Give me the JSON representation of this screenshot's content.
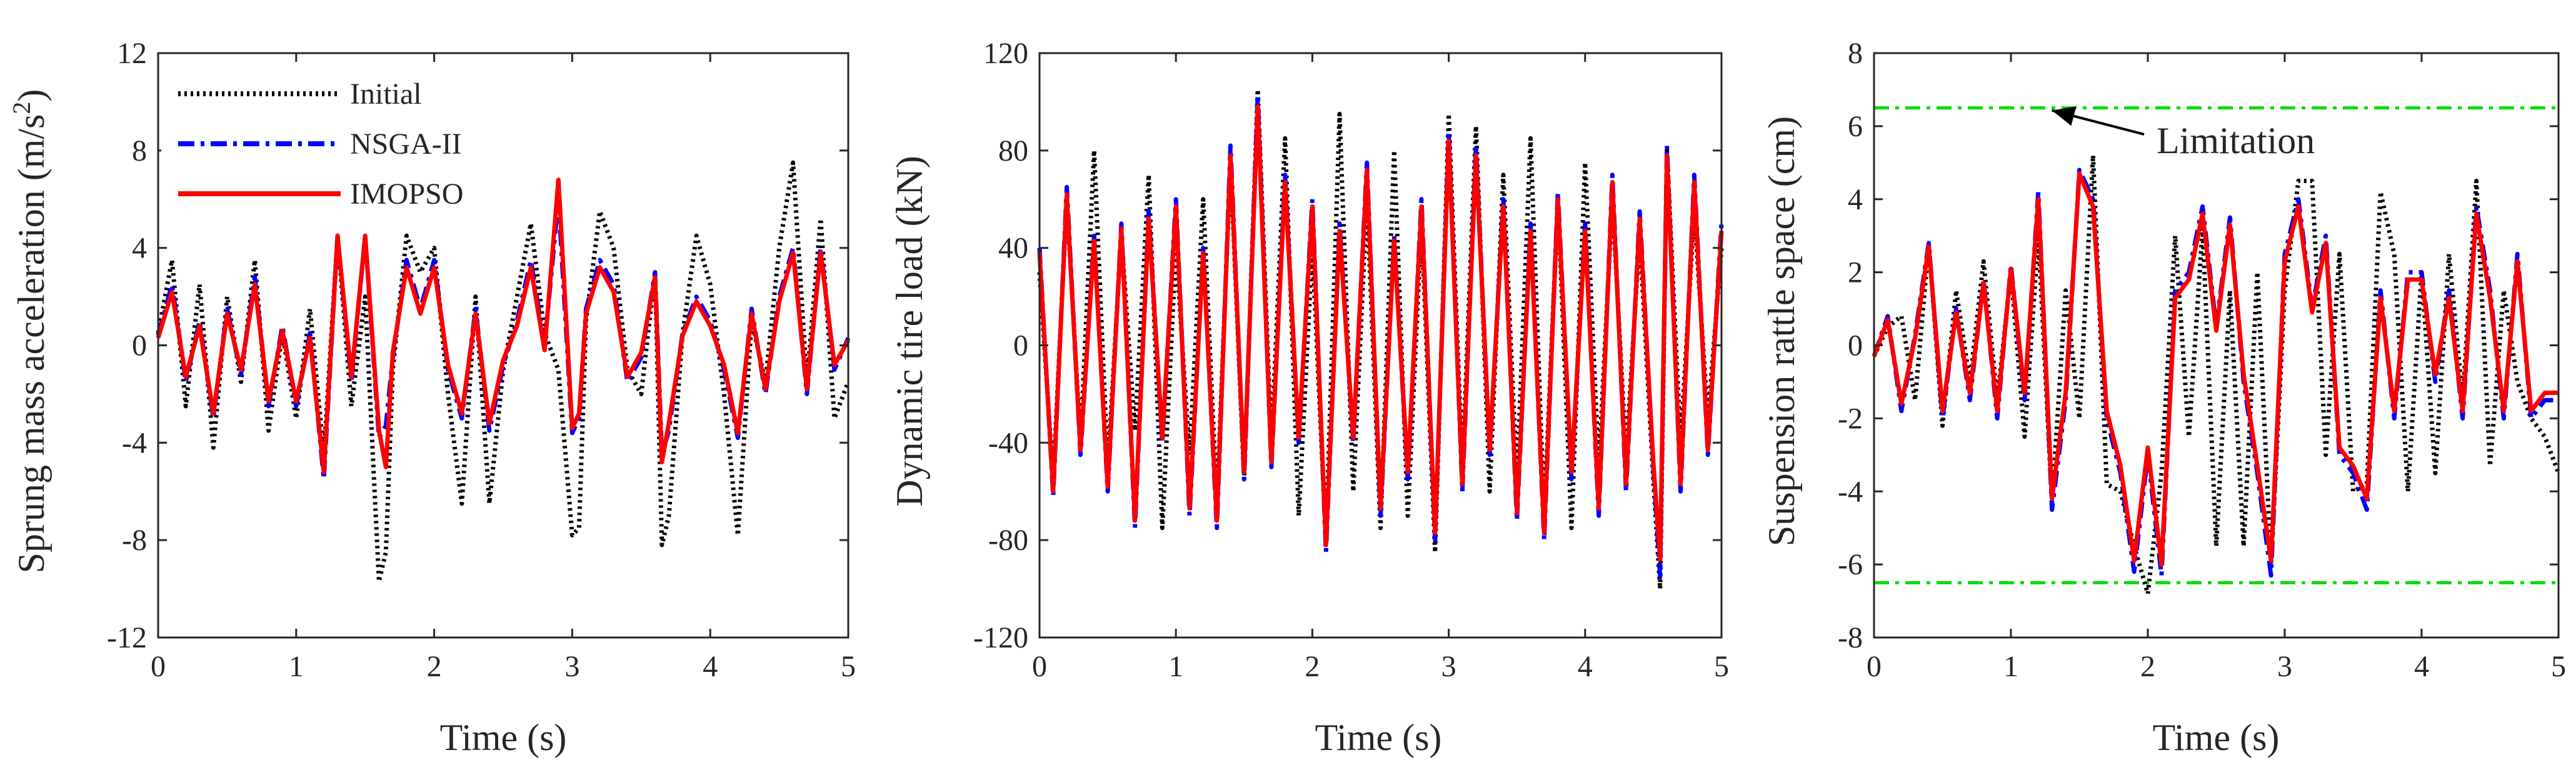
{
  "colors": {
    "initial": "#000000",
    "nsga": "#0000ff",
    "imopso": "#ff0000",
    "limit": "#00dd00",
    "axis": "#262626"
  },
  "chart_data": [
    {
      "type": "line",
      "ylabel": "Sprung mass acceleration (m/s",
      "ylabel_sup": "2",
      "ylabel_tail": ")",
      "xlabel": "Time (s)",
      "xlim": [
        0,
        5
      ],
      "ylim": [
        -12,
        12
      ],
      "xticks": [
        0,
        1,
        2,
        3,
        4,
        5
      ],
      "yticks": [
        -12,
        -8,
        -4,
        0,
        4,
        8,
        12
      ],
      "legend": {
        "placement": "top-left",
        "entries": [
          "Initial",
          "NSGA-II",
          "IMOPSO"
        ]
      },
      "series": [
        {
          "name": "Initial",
          "style": "dotted",
          "x": [
            0,
            0.1,
            0.2,
            0.3,
            0.4,
            0.5,
            0.6,
            0.7,
            0.8,
            0.9,
            1.0,
            1.1,
            1.2,
            1.3,
            1.4,
            1.5,
            1.6,
            1.65,
            1.7,
            1.8,
            1.9,
            2.0,
            2.1,
            2.2,
            2.3,
            2.4,
            2.5,
            2.6,
            2.7,
            2.8,
            2.9,
            3.0,
            3.05,
            3.1,
            3.2,
            3.3,
            3.4,
            3.5,
            3.6,
            3.65,
            3.7,
            3.8,
            3.9,
            4.0,
            4.1,
            4.2,
            4.3,
            4.4,
            4.5,
            4.6,
            4.7,
            4.8,
            4.9,
            5.0
          ],
          "y": [
            0.5,
            3.5,
            -2.5,
            2.5,
            -4.2,
            2.0,
            -1.5,
            3.5,
            -3.5,
            0.5,
            -3.0,
            1.5,
            -4.5,
            4.5,
            -2.5,
            2.0,
            -9.7,
            -8.5,
            -1.0,
            4.5,
            3.0,
            4.0,
            -2.0,
            -6.5,
            2.0,
            -6.5,
            -1.0,
            2.0,
            5.0,
            0.5,
            -1.0,
            -7.8,
            -7.5,
            1.0,
            5.5,
            4.0,
            -1.0,
            -2.0,
            3.0,
            -8.2,
            -7.0,
            0.5,
            4.5,
            2.5,
            -2.0,
            -7.8,
            1.0,
            -1.5,
            4.0,
            7.5,
            -1.5,
            5.2,
            -3.0,
            -1.5
          ]
        },
        {
          "name": "NSGA-II",
          "style": "dashdot",
          "x": [
            0,
            0.1,
            0.2,
            0.3,
            0.4,
            0.5,
            0.6,
            0.7,
            0.8,
            0.9,
            1.0,
            1.1,
            1.2,
            1.3,
            1.4,
            1.5,
            1.6,
            1.65,
            1.7,
            1.8,
            1.9,
            2.0,
            2.1,
            2.2,
            2.3,
            2.4,
            2.5,
            2.6,
            2.7,
            2.8,
            2.9,
            3.0,
            3.05,
            3.1,
            3.2,
            3.3,
            3.4,
            3.5,
            3.6,
            3.65,
            3.7,
            3.8,
            3.9,
            4.0,
            4.1,
            4.2,
            4.3,
            4.4,
            4.5,
            4.6,
            4.7,
            4.8,
            4.9,
            5.0
          ],
          "y": [
            0.4,
            2.5,
            -1.5,
            1.0,
            -3.0,
            1.5,
            -1.2,
            2.8,
            -2.5,
            0.8,
            -2.5,
            0.5,
            -5.5,
            4.5,
            -1.5,
            4.5,
            -3.8,
            -3.3,
            -0.5,
            3.5,
            1.5,
            3.5,
            -1.0,
            -3.0,
            1.5,
            -3.5,
            -0.8,
            1.0,
            3.5,
            0.0,
            6.0,
            -3.6,
            -3.0,
            1.5,
            3.5,
            2.5,
            -1.5,
            -0.5,
            3.0,
            -4.5,
            -3.5,
            0.5,
            2.0,
            1.0,
            -1.0,
            -3.8,
            1.5,
            -2.0,
            2.0,
            4.0,
            -2.0,
            4.0,
            -1.0,
            0.3
          ]
        },
        {
          "name": "IMOPSO",
          "style": "solid",
          "x": [
            0,
            0.1,
            0.2,
            0.3,
            0.4,
            0.5,
            0.6,
            0.7,
            0.8,
            0.9,
            1.0,
            1.1,
            1.2,
            1.3,
            1.4,
            1.5,
            1.6,
            1.65,
            1.7,
            1.8,
            1.9,
            2.0,
            2.1,
            2.2,
            2.3,
            2.4,
            2.5,
            2.6,
            2.7,
            2.8,
            2.9,
            3.0,
            3.05,
            3.1,
            3.2,
            3.3,
            3.4,
            3.5,
            3.6,
            3.65,
            3.7,
            3.8,
            3.9,
            4.0,
            4.1,
            4.2,
            4.3,
            4.4,
            4.5,
            4.6,
            4.7,
            4.8,
            4.9,
            5.0
          ],
          "y": [
            0.3,
            2.2,
            -1.3,
            0.8,
            -2.8,
            1.3,
            -1.0,
            2.5,
            -2.3,
            0.6,
            -2.3,
            0.3,
            -5.2,
            4.5,
            -1.3,
            4.5,
            -3.5,
            -5.0,
            -0.3,
            3.2,
            1.3,
            3.2,
            -0.8,
            -2.8,
            1.3,
            -3.2,
            -0.6,
            0.8,
            3.2,
            -0.2,
            6.8,
            -3.4,
            -2.8,
            1.3,
            3.2,
            2.2,
            -1.3,
            -0.3,
            2.8,
            -4.8,
            -3.2,
            0.4,
            1.8,
            0.8,
            -0.8,
            -3.6,
            1.3,
            -1.8,
            1.8,
            3.8,
            -1.8,
            3.8,
            -0.8,
            0.2
          ]
        }
      ]
    },
    {
      "type": "line",
      "ylabel": "Dynamic tire load (kN)",
      "xlabel": "Time (s)",
      "xlim": [
        0,
        5
      ],
      "ylim": [
        -120,
        120
      ],
      "xticks": [
        0,
        1,
        2,
        3,
        4,
        5
      ],
      "yticks": [
        -120,
        -80,
        -40,
        0,
        40,
        80,
        120
      ],
      "series": [
        {
          "name": "Initial",
          "style": "dotted",
          "x": [
            0,
            0.1,
            0.2,
            0.3,
            0.4,
            0.5,
            0.6,
            0.7,
            0.8,
            0.9,
            1.0,
            1.1,
            1.2,
            1.3,
            1.4,
            1.5,
            1.6,
            1.7,
            1.8,
            1.9,
            2.0,
            2.1,
            2.2,
            2.3,
            2.4,
            2.5,
            2.6,
            2.7,
            2.8,
            2.9,
            3.0,
            3.1,
            3.2,
            3.3,
            3.4,
            3.5,
            3.6,
            3.7,
            3.8,
            3.9,
            4.0,
            4.1,
            4.2,
            4.3,
            4.4,
            4.5,
            4.55,
            4.6,
            4.7,
            4.8,
            4.9,
            5.0
          ],
          "y": [
            30,
            -55,
            60,
            -40,
            80,
            -50,
            45,
            -35,
            70,
            -75,
            40,
            -45,
            60,
            -65,
            75,
            -55,
            105,
            -40,
            85,
            -70,
            40,
            -80,
            95,
            -60,
            60,
            -75,
            80,
            -70,
            50,
            -85,
            95,
            -50,
            90,
            -60,
            70,
            -55,
            85,
            -70,
            60,
            -75,
            75,
            -50,
            60,
            -45,
            45,
            -55,
            -100,
            80,
            -40,
            55,
            -30,
            40
          ]
        },
        {
          "name": "NSGA-II",
          "style": "dashdot",
          "x": [
            0,
            0.1,
            0.2,
            0.3,
            0.4,
            0.5,
            0.6,
            0.7,
            0.8,
            0.9,
            1.0,
            1.1,
            1.2,
            1.3,
            1.4,
            1.5,
            1.6,
            1.7,
            1.8,
            1.9,
            2.0,
            2.1,
            2.2,
            2.3,
            2.4,
            2.5,
            2.6,
            2.7,
            2.8,
            2.9,
            3.0,
            3.1,
            3.2,
            3.3,
            3.4,
            3.5,
            3.6,
            3.7,
            3.8,
            3.9,
            4.0,
            4.1,
            4.2,
            4.3,
            4.4,
            4.5,
            4.55,
            4.6,
            4.7,
            4.8,
            4.9,
            5.0
          ],
          "y": [
            40,
            -62,
            65,
            -45,
            45,
            -60,
            50,
            -75,
            55,
            -40,
            60,
            -70,
            40,
            -75,
            82,
            -55,
            103,
            -50,
            70,
            -40,
            60,
            -85,
            50,
            -40,
            75,
            -70,
            45,
            -55,
            60,
            -80,
            88,
            -60,
            82,
            -45,
            60,
            -72,
            50,
            -80,
            63,
            -55,
            50,
            -70,
            70,
            -60,
            55,
            -50,
            -95,
            82,
            -60,
            70,
            -45,
            50
          ]
        },
        {
          "name": "IMOPSO",
          "style": "solid",
          "x": [
            0,
            0.1,
            0.2,
            0.3,
            0.4,
            0.5,
            0.6,
            0.7,
            0.8,
            0.9,
            1.0,
            1.1,
            1.2,
            1.3,
            1.4,
            1.5,
            1.6,
            1.7,
            1.8,
            1.9,
            2.0,
            2.1,
            2.2,
            2.3,
            2.4,
            2.5,
            2.6,
            2.7,
            2.8,
            2.9,
            3.0,
            3.1,
            3.2,
            3.3,
            3.4,
            3.5,
            3.6,
            3.7,
            3.8,
            3.9,
            4.0,
            4.1,
            4.2,
            4.3,
            4.4,
            4.5,
            4.55,
            4.6,
            4.7,
            4.8,
            4.9,
            5.0
          ],
          "y": [
            38,
            -60,
            62,
            -43,
            43,
            -58,
            48,
            -72,
            52,
            -38,
            57,
            -67,
            38,
            -72,
            78,
            -52,
            98,
            -48,
            67,
            -38,
            57,
            -82,
            47,
            -38,
            72,
            -67,
            43,
            -52,
            57,
            -77,
            84,
            -57,
            78,
            -43,
            57,
            -69,
            47,
            -77,
            60,
            -52,
            47,
            -67,
            67,
            -57,
            52,
            -48,
            -88,
            78,
            -57,
            67,
            -43,
            47
          ]
        }
      ]
    },
    {
      "type": "line",
      "ylabel": "Suspension rattle space (cm)",
      "xlabel": "Time (s)",
      "xlim": [
        0,
        5
      ],
      "ylim": [
        -8,
        8
      ],
      "xticks": [
        0,
        1,
        2,
        3,
        4,
        5
      ],
      "yticks": [
        -8,
        -6,
        -4,
        -2,
        0,
        2,
        4,
        6,
        8
      ],
      "limits": [
        6.5,
        -6.5
      ],
      "annotation": {
        "text": "Limitation",
        "x": 1.3,
        "y": 6.5
      },
      "series": [
        {
          "name": "Initial",
          "style": "dotted",
          "x": [
            0,
            0.1,
            0.2,
            0.3,
            0.4,
            0.5,
            0.6,
            0.7,
            0.8,
            0.9,
            1.0,
            1.1,
            1.2,
            1.3,
            1.4,
            1.5,
            1.6,
            1.7,
            1.8,
            1.9,
            2.0,
            2.1,
            2.2,
            2.3,
            2.4,
            2.5,
            2.6,
            2.7,
            2.8,
            2.9,
            3.0,
            3.1,
            3.2,
            3.3,
            3.4,
            3.5,
            3.6,
            3.7,
            3.8,
            3.9,
            4.0,
            4.1,
            4.2,
            4.3,
            4.4,
            4.5,
            4.6,
            4.7,
            4.8,
            4.9,
            5.0
          ],
          "y": [
            -0.3,
            0.5,
            0.8,
            -1.5,
            2.8,
            -2.2,
            1.5,
            -1.0,
            2.3,
            -1.5,
            2.0,
            -2.5,
            3.0,
            -4.3,
            1.5,
            -2.0,
            5.2,
            -3.8,
            -4.0,
            -5.5,
            -6.8,
            -3.5,
            3.0,
            -2.5,
            3.2,
            -5.5,
            1.5,
            -5.5,
            2.0,
            -6.0,
            1.5,
            4.5,
            4.5,
            -3.0,
            2.5,
            -4.0,
            -3.8,
            4.2,
            2.5,
            -4.0,
            2.0,
            -3.5,
            2.5,
            -1.5,
            4.5,
            -3.3,
            1.5,
            -1.0,
            -2.0,
            -2.5,
            -3.5
          ]
        },
        {
          "name": "NSGA-II",
          "style": "dashdot",
          "x": [
            0,
            0.1,
            0.2,
            0.3,
            0.4,
            0.5,
            0.6,
            0.7,
            0.8,
            0.9,
            1.0,
            1.1,
            1.2,
            1.3,
            1.4,
            1.5,
            1.6,
            1.7,
            1.8,
            1.9,
            2.0,
            2.1,
            2.2,
            2.3,
            2.4,
            2.5,
            2.6,
            2.7,
            2.8,
            2.9,
            3.0,
            3.1,
            3.2,
            3.3,
            3.4,
            3.5,
            3.6,
            3.7,
            3.8,
            3.9,
            4.0,
            4.1,
            4.2,
            4.3,
            4.4,
            4.5,
            4.6,
            4.7,
            4.8,
            4.9,
            5.0
          ],
          "y": [
            -0.3,
            0.8,
            -1.8,
            0.3,
            2.8,
            -2.0,
            1.0,
            -1.5,
            1.8,
            -2.0,
            2.2,
            -1.5,
            4.2,
            -4.5,
            -1.5,
            4.8,
            4.0,
            -2.0,
            -3.5,
            -6.2,
            -3.0,
            -6.3,
            1.5,
            2.0,
            3.8,
            0.5,
            3.5,
            -1.0,
            -3.5,
            -6.3,
            2.5,
            4.0,
            1.0,
            3.0,
            -3.0,
            -3.5,
            -4.5,
            1.5,
            -2.0,
            2.0,
            2.0,
            -1.0,
            1.5,
            -2.0,
            3.8,
            1.5,
            -2.0,
            2.5,
            -2.0,
            -1.5,
            -1.5
          ]
        },
        {
          "name": "IMOPSO",
          "style": "solid",
          "x": [
            0,
            0.1,
            0.2,
            0.3,
            0.4,
            0.5,
            0.6,
            0.7,
            0.8,
            0.9,
            1.0,
            1.1,
            1.2,
            1.3,
            1.4,
            1.5,
            1.6,
            1.7,
            1.8,
            1.9,
            2.0,
            2.1,
            2.2,
            2.3,
            2.4,
            2.5,
            2.6,
            2.7,
            2.8,
            2.9,
            3.0,
            3.1,
            3.2,
            3.3,
            3.4,
            3.5,
            3.6,
            3.7,
            3.8,
            3.9,
            4.0,
            4.1,
            4.2,
            4.3,
            4.4,
            4.5,
            4.6,
            4.7,
            4.8,
            4.9,
            5.0
          ],
          "y": [
            -0.3,
            0.7,
            -1.6,
            0.2,
            2.7,
            -1.8,
            0.9,
            -1.3,
            1.7,
            -1.8,
            2.1,
            -1.3,
            4.0,
            -4.2,
            -1.3,
            4.7,
            3.8,
            -1.8,
            -3.3,
            -5.9,
            -2.8,
            -6.0,
            1.3,
            1.8,
            3.6,
            0.4,
            3.3,
            -0.8,
            -3.3,
            -5.9,
            2.3,
            3.8,
            0.9,
            2.8,
            -2.8,
            -3.3,
            -4.2,
            1.3,
            -1.8,
            1.8,
            1.8,
            -0.8,
            1.3,
            -1.8,
            3.6,
            1.3,
            -1.8,
            2.3,
            -1.8,
            -1.3,
            -1.3
          ]
        }
      ]
    }
  ]
}
